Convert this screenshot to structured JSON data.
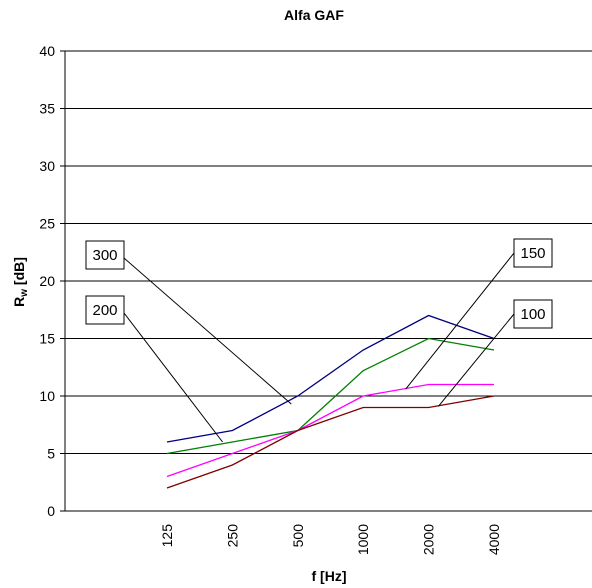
{
  "chart_data": {
    "type": "line",
    "title": "Alfa GAF",
    "xlabel": "f [Hz]",
    "ylabel_main": "R",
    "ylabel_sub": "w",
    "ylabel_unit": " [dB]",
    "categories": [
      "125",
      "250",
      "500",
      "1000",
      "2000",
      "4000"
    ],
    "ylim": [
      0,
      40
    ],
    "yticks": [
      0,
      5,
      10,
      15,
      20,
      25,
      30,
      35,
      40
    ],
    "grid": true,
    "series": [
      {
        "name": "300",
        "color": "#000080",
        "values": [
          6,
          7,
          10,
          14,
          17,
          15
        ]
      },
      {
        "name": "200",
        "color": "#008000",
        "values": [
          5,
          6,
          7,
          12.2,
          15,
          14
        ]
      },
      {
        "name": "150",
        "color": "#ff00ff",
        "values": [
          3,
          5,
          7,
          10,
          11,
          11
        ]
      },
      {
        "name": "100",
        "color": "#800000",
        "values": [
          2,
          4,
          7,
          9,
          9,
          10
        ]
      }
    ],
    "annotations": [
      {
        "series": "300",
        "label": "300",
        "side": "left",
        "pointer_x_index": 1.9,
        "pointer_y": 9.3
      },
      {
        "series": "200",
        "label": "200",
        "side": "left",
        "pointer_x_index": 0.85,
        "pointer_y": 6.0
      },
      {
        "series": "150",
        "label": "150",
        "side": "right",
        "pointer_x_index": 3.65,
        "pointer_y": 10.6
      },
      {
        "series": "100",
        "label": "100",
        "side": "right",
        "pointer_x_index": 4.15,
        "pointer_y": 9.1
      }
    ]
  }
}
